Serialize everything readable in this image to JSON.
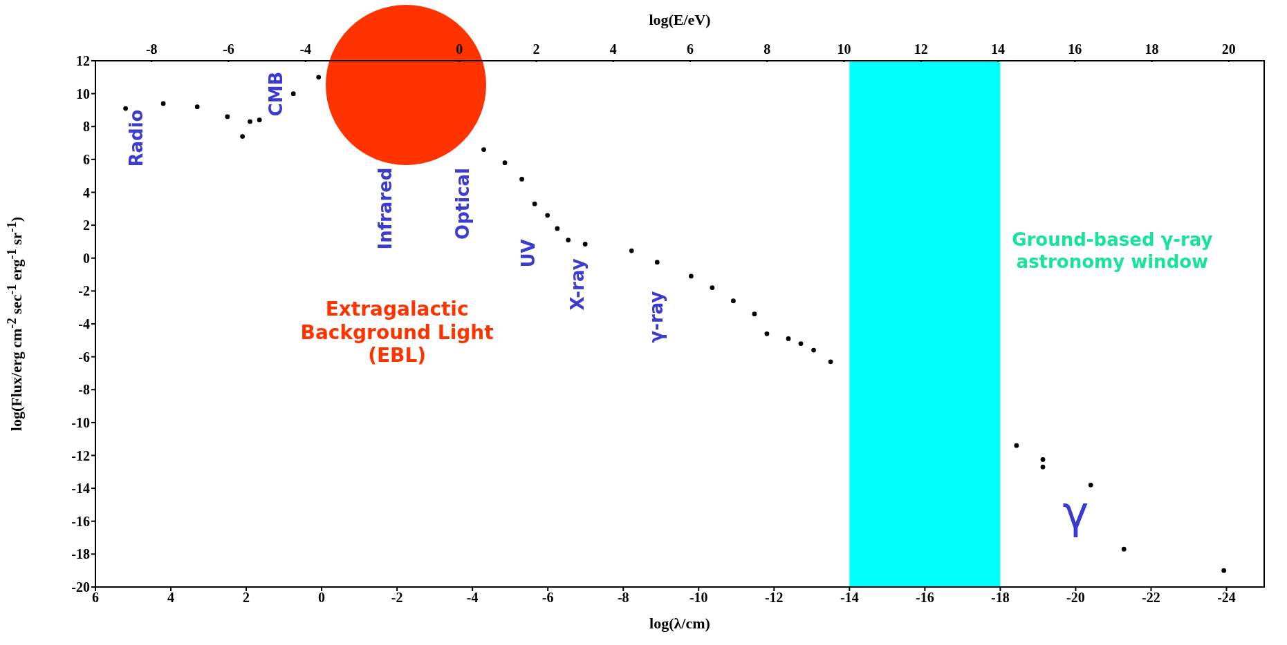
{
  "chart_data": {
    "type": "scatter",
    "xlabel": "log(λ/cm)",
    "x2label": "log(E/eV)",
    "ylabel": "log(Flux/erg cm$^{-2}$ sec$^{-1}$ erg$^{-1}$ sr$^{-1}$)",
    "xlim": [
      6,
      -25
    ],
    "xticks": [
      6,
      4,
      2,
      0,
      -2,
      -4,
      -6,
      -8,
      -10,
      -12,
      -14,
      -16,
      -18,
      -20,
      -22,
      -24
    ],
    "x2lim": [
      -9.46,
      20.92
    ],
    "x2ticks": [
      -8,
      -6,
      -4,
      0,
      2,
      4,
      6,
      8,
      10,
      12,
      14,
      16,
      18,
      20
    ],
    "ylim": [
      -20,
      12
    ],
    "yticks": [
      -20,
      -18,
      -16,
      -14,
      -12,
      -10,
      -8,
      -6,
      -4,
      -2,
      0,
      2,
      4,
      6,
      8,
      10,
      12
    ],
    "marker": "circle",
    "series": [
      {
        "color": "#000000",
        "x": [
          5.2,
          4.2,
          3.3,
          2.5,
          1.9,
          2.1,
          1.65,
          0.75,
          0.08,
          -4.3,
          -4.86,
          -5.31,
          -5.65,
          -5.99,
          -6.25,
          -6.54,
          -6.99,
          -8.22,
          -8.9,
          -9.8,
          -10.36,
          -10.92,
          -11.48,
          -11.81,
          -12.38,
          -12.71,
          -13.05,
          -13.5,
          -18.43,
          -19.13,
          -19.13,
          -20.4,
          -21.28,
          -23.93
        ],
        "values": [
          9.1,
          9.4,
          9.2,
          8.6,
          8.3,
          7.4,
          8.4,
          10.0,
          11.0,
          6.6,
          5.8,
          4.8,
          3.3,
          2.6,
          1.8,
          1.1,
          0.85,
          0.45,
          -0.25,
          -1.1,
          -1.8,
          -2.6,
          -3.4,
          -4.6,
          -4.9,
          -5.2,
          -5.6,
          -6.3,
          -11.4,
          -12.25,
          -12.7,
          -13.8,
          -17.7,
          -19.0
        ]
      }
    ],
    "bands": [
      {
        "axis": "x",
        "from": -14,
        "to": -18,
        "label": "Ground-based γ-ray astronomy window",
        "color": "#00ffff"
      }
    ],
    "annotations": [
      "Radio",
      "CMB",
      "Infrared",
      "Optical",
      "UV",
      "X-ray",
      "γ-ray",
      "Extragalactic Background Light (EBL)",
      "γ"
    ]
  }
}
